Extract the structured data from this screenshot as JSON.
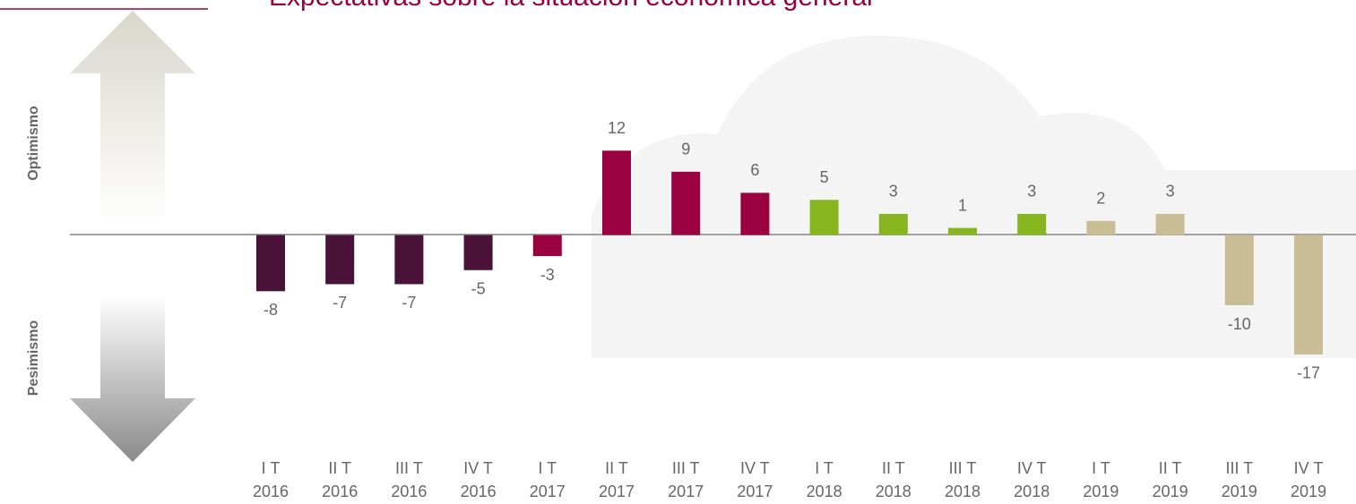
{
  "chart_data": {
    "type": "bar",
    "title": "Expectativas sobre la situación económica general",
    "side_labels": [
      "Optimismo",
      "Pesimismo"
    ],
    "categories": [
      [
        "I T",
        "2016"
      ],
      [
        "II T",
        "2016"
      ],
      [
        "III T",
        "2016"
      ],
      [
        "IV T",
        "2016"
      ],
      [
        "I T",
        "2017"
      ],
      [
        "II T",
        "2017"
      ],
      [
        "III T",
        "2017"
      ],
      [
        "IV T",
        "2017"
      ],
      [
        "I T",
        "2018"
      ],
      [
        "II T",
        "2018"
      ],
      [
        "III T",
        "2018"
      ],
      [
        "IV T",
        "2018"
      ],
      [
        "I T",
        "2019"
      ],
      [
        "II T",
        "2019"
      ],
      [
        "III T",
        "2019"
      ],
      [
        "IV T",
        "2019"
      ]
    ],
    "values": [
      -8,
      -7,
      -7,
      -5,
      -3,
      12,
      9,
      6,
      5,
      3,
      1,
      3,
      2,
      3,
      -10,
      -17
    ],
    "colors": [
      "#4a1238",
      "#4a1238",
      "#4a1238",
      "#4a1238",
      "#9b0040",
      "#9b0040",
      "#9b0040",
      "#9b0040",
      "#86b51f",
      "#86b51f",
      "#86b51f",
      "#86b51f",
      "#c8bd94",
      "#c8bd94",
      "#c8bd94",
      "#c8bd94"
    ],
    "ylim": [
      -26,
      30
    ]
  }
}
